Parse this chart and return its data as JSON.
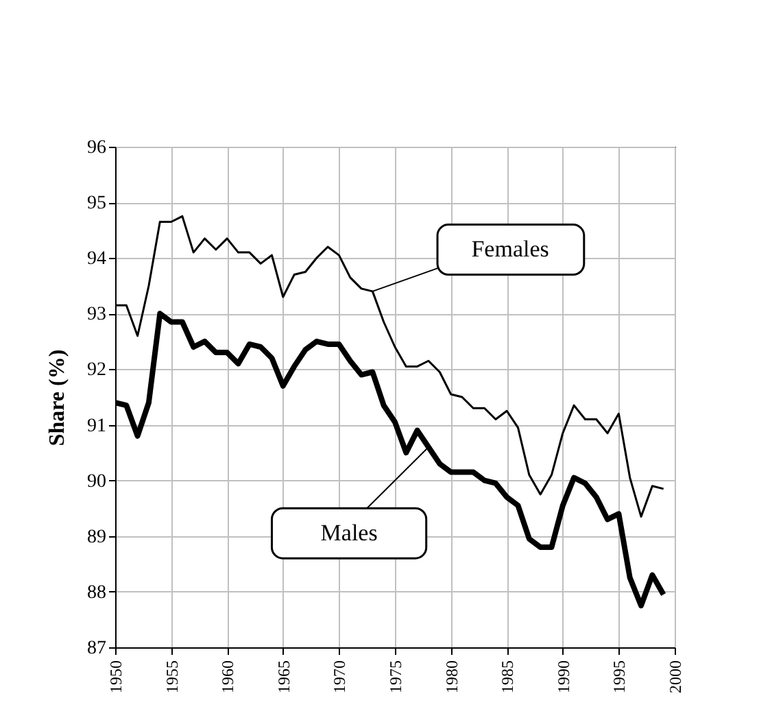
{
  "chart_data": {
    "type": "line",
    "ylabel": "Share (%)",
    "x": [
      1950,
      1951,
      1952,
      1953,
      1954,
      1955,
      1956,
      1957,
      1958,
      1959,
      1960,
      1961,
      1962,
      1963,
      1964,
      1965,
      1966,
      1967,
      1968,
      1969,
      1970,
      1971,
      1972,
      1973,
      1974,
      1975,
      1976,
      1977,
      1978,
      1979,
      1980,
      1981,
      1982,
      1983,
      1984,
      1985,
      1986,
      1987,
      1988,
      1989,
      1990,
      1991,
      1992,
      1993,
      1994,
      1995,
      1996,
      1997,
      1998,
      1999
    ],
    "series": [
      {
        "name": "Females",
        "color": "#000000",
        "values": [
          93.15,
          93.15,
          92.6,
          93.5,
          94.65,
          94.65,
          94.75,
          94.1,
          94.35,
          94.15,
          94.35,
          94.1,
          94.1,
          93.9,
          94.05,
          93.3,
          93.7,
          93.75,
          94.0,
          94.2,
          94.05,
          93.65,
          93.45,
          93.4,
          92.85,
          92.4,
          92.05,
          92.05,
          92.15,
          91.95,
          91.55,
          91.5,
          91.3,
          91.3,
          91.1,
          91.25,
          90.95,
          90.1,
          89.75,
          90.1,
          90.85,
          91.35,
          91.1,
          91.1,
          90.85,
          91.2,
          90.05,
          89.35,
          89.9,
          89.85
        ]
      },
      {
        "name": "Males",
        "color": "#000000",
        "values": [
          91.4,
          91.35,
          90.8,
          91.4,
          93.0,
          92.85,
          92.85,
          92.4,
          92.5,
          92.3,
          92.3,
          92.1,
          92.45,
          92.4,
          92.2,
          91.7,
          92.05,
          92.35,
          92.5,
          92.45,
          92.45,
          92.15,
          91.9,
          91.95,
          91.35,
          91.05,
          90.5,
          90.9,
          90.6,
          90.3,
          90.15,
          90.15,
          90.15,
          90.0,
          89.95,
          89.7,
          89.55,
          88.95,
          88.8,
          88.8,
          89.55,
          90.05,
          89.95,
          89.7,
          89.3,
          89.4,
          88.25,
          87.75,
          88.3,
          87.95
        ]
      }
    ],
    "xlim": [
      1950,
      2000
    ],
    "xticks": [
      1950,
      1955,
      1960,
      1965,
      1970,
      1975,
      1980,
      1985,
      1990,
      1995,
      2000
    ],
    "ylim": [
      87,
      96
    ],
    "yticks": [
      87,
      88,
      89,
      90,
      91,
      92,
      93,
      94,
      95,
      96
    ],
    "grid": true,
    "marker": "none",
    "line_style": "solid"
  }
}
